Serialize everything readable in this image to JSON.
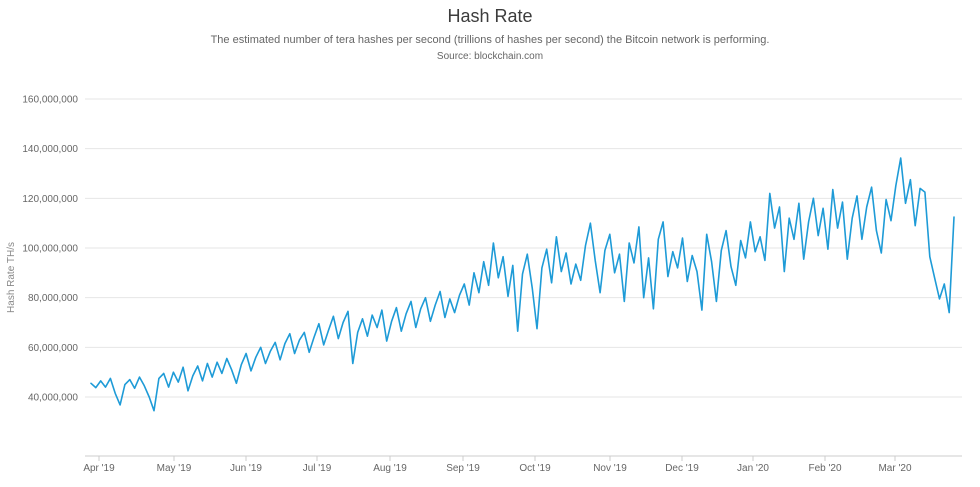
{
  "page": {
    "background": "#ffffff"
  },
  "chart_data": {
    "type": "line",
    "title": "Hash Rate",
    "subtitle": "The estimated number of tera hashes per second (trillions of hashes per second) the Bitcoin network is performing.",
    "source": "Source: blockchain.com",
    "ylabel": "Hash Rate TH/s",
    "unit": "TH/s",
    "grid": true,
    "legend": "none",
    "x_tick_labels": [
      "Apr '19",
      "May '19",
      "Jun '19",
      "Jul '19",
      "Aug '19",
      "Sep '19",
      "Oct '19",
      "Nov '19",
      "Dec '19",
      "Jan '20",
      "Feb '20",
      "Mar '20"
    ],
    "y_tick_values": [
      160000000,
      140000000,
      120000000,
      100000000,
      80000000,
      60000000,
      40000000
    ],
    "ylim": [
      16000000,
      160000000
    ],
    "colors": {
      "line": "#1e9bd7",
      "gridline": "#e6e6e6",
      "axis_line": "#cccccc",
      "title_text": "#3c3c3c",
      "muted_text": "#666666",
      "axis_title_text": "#888888"
    },
    "series": [
      {
        "name": "Hash Rate",
        "color": "#1e9bd7",
        "unit_multiplier": 1000000,
        "values_millions": [
          45.5,
          43.8,
          46.5,
          44.0,
          47.5,
          41.5,
          36.8,
          45.0,
          47.0,
          43.5,
          48.0,
          44.5,
          40.0,
          34.5,
          47.5,
          49.5,
          44.0,
          50.0,
          46.0,
          52.0,
          42.5,
          48.5,
          52.5,
          46.5,
          53.5,
          48.0,
          54.0,
          49.5,
          55.5,
          51.0,
          45.5,
          53.0,
          57.5,
          50.5,
          56.0,
          60.0,
          53.5,
          58.5,
          62.0,
          55.0,
          61.5,
          65.5,
          57.5,
          63.0,
          66.0,
          58.0,
          64.0,
          69.5,
          61.0,
          67.0,
          72.5,
          63.5,
          70.0,
          74.5,
          53.5,
          66.0,
          71.5,
          64.5,
          73.0,
          68.0,
          75.0,
          62.5,
          70.5,
          76.0,
          66.5,
          73.5,
          78.5,
          68.0,
          75.5,
          80.0,
          70.5,
          77.0,
          82.5,
          72.0,
          79.5,
          74.0,
          81.0,
          85.5,
          77.0,
          90.0,
          82.0,
          94.5,
          85.0,
          102.0,
          88.0,
          96.5,
          80.5,
          93.0,
          66.5,
          89.5,
          97.5,
          84.0,
          67.5,
          92.0,
          99.5,
          86.0,
          104.5,
          90.5,
          98.0,
          85.5,
          93.5,
          87.0,
          101.0,
          110.0,
          95.0,
          82.0,
          99.0,
          105.5,
          90.0,
          97.5,
          78.5,
          102.0,
          94.0,
          108.5,
          80.0,
          96.0,
          75.5,
          103.5,
          110.5,
          88.5,
          98.5,
          92.0,
          104.0,
          86.5,
          97.0,
          90.5,
          75.0,
          105.5,
          94.5,
          78.5,
          99.0,
          107.0,
          92.5,
          85.0,
          103.0,
          96.0,
          110.5,
          98.5,
          104.5,
          95.0,
          122.0,
          108.0,
          116.5,
          90.5,
          112.0,
          103.5,
          118.0,
          95.5,
          110.5,
          120.0,
          105.0,
          116.0,
          99.5,
          123.5,
          108.0,
          118.5,
          95.5,
          112.0,
          121.0,
          103.5,
          116.5,
          124.5,
          107.0,
          98.0,
          119.5,
          111.0,
          125.0,
          136.2,
          118.0,
          127.5,
          109.0,
          124.0,
          122.5,
          96.5,
          88.0,
          79.5,
          85.5,
          74.0,
          112.5
        ]
      }
    ]
  }
}
